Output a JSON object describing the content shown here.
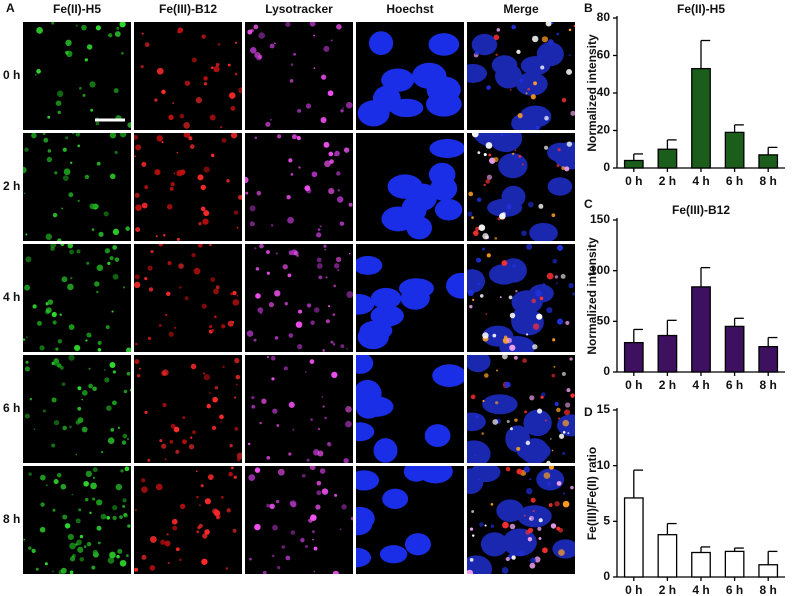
{
  "panel_a": {
    "label": "A",
    "columns": [
      "Fe(II)-H5",
      "Fe(III)-B12",
      "Lysotracker",
      "Hoechst",
      "Merge"
    ],
    "rows": [
      "0 h",
      "2 h",
      "4 h",
      "6 h",
      "8 h"
    ]
  },
  "chart_data": [
    {
      "type": "bar",
      "panel_label": "B",
      "title": "Fe(II)-H5",
      "y_label": "Normalized intensity",
      "categories": [
        "0 h",
        "2 h",
        "4 h",
        "6 h",
        "8 h"
      ],
      "values": [
        4,
        10,
        53,
        19,
        7
      ],
      "errors": [
        3.5,
        5,
        15,
        4,
        4
      ],
      "color": "#1b5e1b",
      "ylim": [
        0,
        80
      ],
      "yticks": [
        0,
        20,
        40,
        60,
        80
      ]
    },
    {
      "type": "bar",
      "panel_label": "C",
      "title": "Fe(III)-B12",
      "y_label": "Normalized intensity",
      "categories": [
        "0 h",
        "2 h",
        "4 h",
        "6 h",
        "8 h"
      ],
      "values": [
        29,
        36,
        84,
        45,
        25
      ],
      "errors": [
        13,
        15,
        19,
        8,
        9
      ],
      "color": "#3d1060",
      "ylim": [
        0,
        150
      ],
      "yticks": [
        0,
        50,
        100,
        150
      ]
    },
    {
      "type": "bar",
      "panel_label": "D",
      "y_label": "Fe(III)/Fe(II) ratio",
      "categories": [
        "0 h",
        "2 h",
        "4 h",
        "6 h",
        "8 h"
      ],
      "values": [
        7.1,
        3.8,
        2.2,
        2.3,
        1.1
      ],
      "errors": [
        2.5,
        1.0,
        0.5,
        0.3,
        1.2
      ],
      "color": "#ffffff",
      "ylim": [
        0,
        15
      ],
      "yticks": [
        0,
        5,
        10,
        15
      ]
    }
  ]
}
